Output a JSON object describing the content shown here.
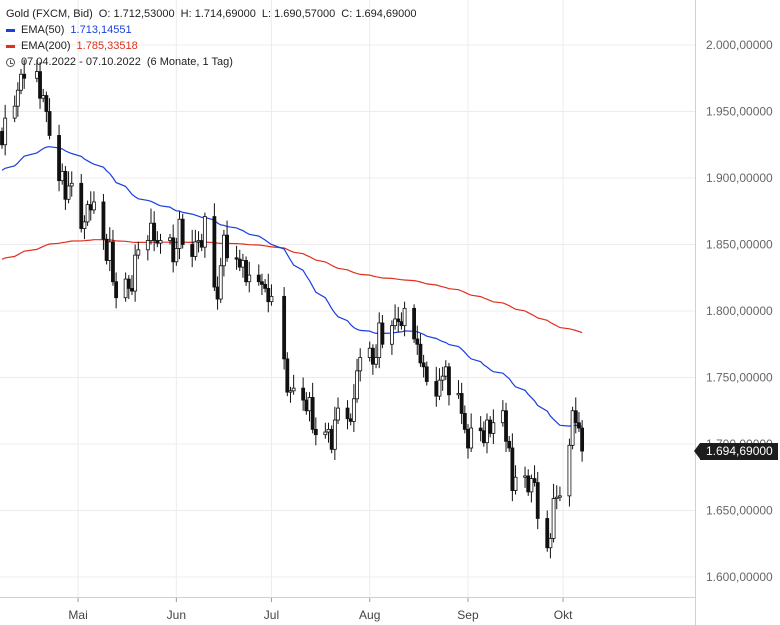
{
  "header": {
    "instrument": "Gold (FXCM, Bid)",
    "open": "O: 1.712,53000",
    "high": "H: 1.714,69000",
    "low": "L: 1.690,57000",
    "close": "C: 1.694,69000",
    "ema50_label": "EMA(50)",
    "ema50_value": "1.713,14551",
    "ema200_label": "EMA(200)",
    "ema200_value": "1.785,33518",
    "range": "07.04.2022 - 07.10.2022",
    "period": "(6 Monate, 1 Tag)"
  },
  "last_price_label": "1.694,69000",
  "colors": {
    "ema50": "#1a3fe0",
    "ema200": "#e0301e",
    "candle": "#111111",
    "grid": "#ececec"
  },
  "chart_data": {
    "type": "candlestick",
    "x_range": [
      "2022-04-07",
      "2022-10-07"
    ],
    "ylim": [
      1585,
      2030
    ],
    "y_ticks": [
      {
        "value": 2000,
        "label": "2.000,00000"
      },
      {
        "value": 1950,
        "label": "1.950,00000"
      },
      {
        "value": 1900,
        "label": "1.900,00000"
      },
      {
        "value": 1850,
        "label": "1.850,00000"
      },
      {
        "value": 1800,
        "label": "1.800,00000"
      },
      {
        "value": 1750,
        "label": "1.750,00000"
      },
      {
        "value": 1700,
        "label": "1.700,00000"
      },
      {
        "value": 1650,
        "label": "1.650,00000"
      },
      {
        "value": 1600,
        "label": "1.600,00000"
      }
    ],
    "x_ticks": [
      {
        "date": "2022-05-01",
        "label": "Mai"
      },
      {
        "date": "2022-06-01",
        "label": "Jun"
      },
      {
        "date": "2022-07-01",
        "label": "Jul"
      },
      {
        "date": "2022-08-01",
        "label": "Aug"
      },
      {
        "date": "2022-09-01",
        "label": "Sep"
      },
      {
        "date": "2022-10-01",
        "label": "Okt"
      }
    ],
    "grid": true,
    "last_close": 1694.69,
    "close_series": [
      [
        "2022-04-07",
        1925
      ],
      [
        "2022-04-08",
        1945
      ],
      [
        "2022-04-11",
        1954
      ],
      [
        "2022-04-12",
        1966
      ],
      [
        "2022-04-13",
        1978
      ],
      [
        "2022-04-14",
        1975
      ],
      [
        "2022-04-18",
        1980
      ],
      [
        "2022-04-19",
        1960
      ],
      [
        "2022-04-20",
        1962
      ],
      [
        "2022-04-21",
        1950
      ],
      [
        "2022-04-22",
        1932
      ],
      [
        "2022-04-25",
        1898
      ],
      [
        "2022-04-26",
        1905
      ],
      [
        "2022-04-27",
        1884
      ],
      [
        "2022-04-28",
        1894
      ],
      [
        "2022-04-29",
        1896
      ],
      [
        "2022-05-02",
        1862
      ],
      [
        "2022-05-03",
        1867
      ],
      [
        "2022-05-04",
        1880
      ],
      [
        "2022-05-05",
        1876
      ],
      [
        "2022-05-06",
        1882
      ],
      [
        "2022-05-09",
        1854
      ],
      [
        "2022-05-10",
        1838
      ],
      [
        "2022-05-11",
        1852
      ],
      [
        "2022-05-12",
        1822
      ],
      [
        "2022-05-13",
        1810
      ],
      [
        "2022-05-16",
        1824
      ],
      [
        "2022-05-17",
        1817
      ],
      [
        "2022-05-18",
        1815
      ],
      [
        "2022-05-19",
        1842
      ],
      [
        "2022-05-20",
        1846
      ],
      [
        "2022-05-23",
        1853
      ],
      [
        "2022-05-24",
        1866
      ],
      [
        "2022-05-25",
        1853
      ],
      [
        "2022-05-26",
        1851
      ],
      [
        "2022-05-27",
        1853
      ],
      [
        "2022-05-30",
        1855
      ],
      [
        "2022-05-31",
        1837
      ],
      [
        "2022-06-01",
        1847
      ],
      [
        "2022-06-02",
        1869
      ],
      [
        "2022-06-03",
        1850
      ],
      [
        "2022-06-06",
        1841
      ],
      [
        "2022-06-07",
        1852
      ],
      [
        "2022-06-08",
        1853
      ],
      [
        "2022-06-09",
        1848
      ],
      [
        "2022-06-10",
        1871
      ],
      [
        "2022-06-13",
        1818
      ],
      [
        "2022-06-14",
        1809
      ],
      [
        "2022-06-15",
        1834
      ],
      [
        "2022-06-16",
        1857
      ],
      [
        "2022-06-17",
        1840
      ],
      [
        "2022-06-20",
        1839
      ],
      [
        "2022-06-21",
        1833
      ],
      [
        "2022-06-22",
        1838
      ],
      [
        "2022-06-23",
        1822
      ],
      [
        "2022-06-24",
        1827
      ],
      [
        "2022-06-27",
        1822
      ],
      [
        "2022-06-28",
        1820
      ],
      [
        "2022-06-29",
        1817
      ],
      [
        "2022-06-30",
        1807
      ],
      [
        "2022-07-01",
        1811
      ],
      [
        "2022-07-05",
        1764
      ],
      [
        "2022-07-06",
        1739
      ],
      [
        "2022-07-07",
        1740
      ],
      [
        "2022-07-08",
        1742
      ],
      [
        "2022-07-11",
        1733
      ],
      [
        "2022-07-12",
        1725
      ],
      [
        "2022-07-13",
        1735
      ],
      [
        "2022-07-14",
        1711
      ],
      [
        "2022-07-15",
        1707
      ],
      [
        "2022-07-18",
        1709
      ],
      [
        "2022-07-19",
        1711
      ],
      [
        "2022-07-20",
        1696
      ],
      [
        "2022-07-21",
        1718
      ],
      [
        "2022-07-22",
        1727
      ],
      [
        "2022-07-25",
        1719
      ],
      [
        "2022-07-26",
        1717
      ],
      [
        "2022-07-27",
        1734
      ],
      [
        "2022-07-28",
        1755
      ],
      [
        "2022-07-29",
        1765
      ],
      [
        "2022-08-01",
        1772
      ],
      [
        "2022-08-02",
        1760
      ],
      [
        "2022-08-03",
        1765
      ],
      [
        "2022-08-04",
        1791
      ],
      [
        "2022-08-05",
        1775
      ],
      [
        "2022-08-08",
        1789
      ],
      [
        "2022-08-09",
        1794
      ],
      [
        "2022-08-10",
        1792
      ],
      [
        "2022-08-11",
        1789
      ],
      [
        "2022-08-12",
        1802
      ],
      [
        "2022-08-15",
        1779
      ],
      [
        "2022-08-16",
        1775
      ],
      [
        "2022-08-17",
        1761
      ],
      [
        "2022-08-18",
        1758
      ],
      [
        "2022-08-19",
        1747
      ],
      [
        "2022-08-22",
        1736
      ],
      [
        "2022-08-23",
        1748
      ],
      [
        "2022-08-24",
        1751
      ],
      [
        "2022-08-25",
        1758
      ],
      [
        "2022-08-26",
        1737
      ],
      [
        "2022-08-29",
        1738
      ],
      [
        "2022-08-30",
        1723
      ],
      [
        "2022-08-31",
        1711
      ],
      [
        "2022-09-01",
        1697
      ],
      [
        "2022-09-02",
        1712
      ],
      [
        "2022-09-05",
        1710
      ],
      [
        "2022-09-06",
        1701
      ],
      [
        "2022-09-07",
        1718
      ],
      [
        "2022-09-08",
        1708
      ],
      [
        "2022-09-09",
        1716
      ],
      [
        "2022-09-12",
        1725
      ],
      [
        "2022-09-13",
        1702
      ],
      [
        "2022-09-14",
        1697
      ],
      [
        "2022-09-15",
        1665
      ],
      [
        "2022-09-16",
        1675
      ],
      [
        "2022-09-19",
        1676
      ],
      [
        "2022-09-20",
        1664
      ],
      [
        "2022-09-21",
        1674
      ],
      [
        "2022-09-22",
        1671
      ],
      [
        "2022-09-23",
        1644
      ],
      [
        "2022-09-26",
        1622
      ],
      [
        "2022-09-27",
        1629
      ],
      [
        "2022-09-28",
        1659
      ],
      [
        "2022-09-29",
        1660
      ],
      [
        "2022-09-30",
        1661
      ],
      [
        "2022-10-03",
        1699
      ],
      [
        "2022-10-04",
        1725
      ],
      [
        "2022-10-05",
        1716
      ],
      [
        "2022-10-06",
        1712
      ],
      [
        "2022-10-07",
        1694.69
      ]
    ]
  }
}
